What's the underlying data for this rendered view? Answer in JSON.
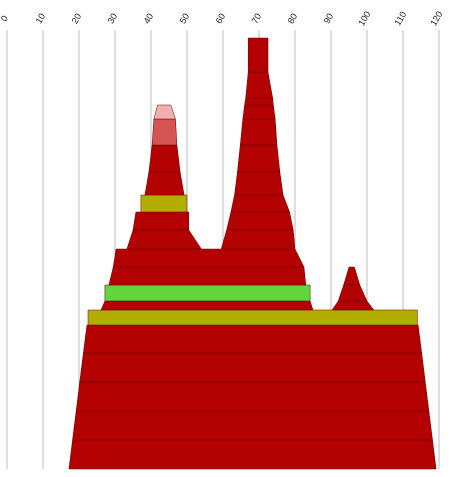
{
  "chart_data": {
    "type": "mountain",
    "xlim": [
      0,
      120
    ],
    "xticks": [
      0,
      10,
      20,
      30,
      40,
      50,
      60,
      70,
      80,
      90,
      100,
      110,
      120
    ],
    "grid": true,
    "rows": [
      [
        {
          "start": 17.2,
          "end": 119.2,
          "top_start": 18.2,
          "top_end": 118.2,
          "color": "#b30000"
        }
      ],
      [
        {
          "start": 18.2,
          "end": 118.2,
          "top_start": 19.2,
          "top_end": 117.2,
          "color": "#b30000"
        }
      ],
      [
        {
          "start": 19.2,
          "end": 117.2,
          "top_start": 20.2,
          "top_end": 116.2,
          "color": "#b30000"
        }
      ],
      [
        {
          "start": 20.2,
          "end": 116.2,
          "top_start": 21.2,
          "top_end": 115.2,
          "color": "#b30000"
        }
      ],
      [
        {
          "start": 21.2,
          "end": 115.2,
          "top_start": 22.2,
          "top_end": 114.2,
          "color": "#b30000"
        }
      ],
      [
        {
          "start": 22.5,
          "end": 114,
          "top_start": 22.5,
          "top_end": 114,
          "color": "#b3ad00"
        }
      ],
      [
        {
          "start": 26.1,
          "end": 85,
          "top_start": 27.2,
          "top_end": 84.2,
          "color": "#b30000"
        },
        {
          "start": 90.3,
          "end": 101.9,
          "top_start": 92,
          "top_end": 100,
          "color": "#b30000"
        }
      ],
      [
        {
          "start": 27.2,
          "end": 84.2,
          "top_start": 27.2,
          "top_end": 84.2,
          "color": "#5ed63c"
        },
        {
          "start": 92,
          "end": 100,
          "top_start": 93.5,
          "top_end": 98,
          "color": "#b30000"
        }
      ],
      [
        {
          "start": 28.3,
          "end": 83,
          "top_start": 29.5,
          "top_end": 82.5,
          "color": "#b30000"
        },
        {
          "start": 93.5,
          "end": 98,
          "top_start": 95,
          "top_end": 96.5,
          "color": "#b30000"
        }
      ],
      [
        {
          "start": 29.5,
          "end": 82.5,
          "top_start": 30.3,
          "top_end": 80,
          "color": "#b30000"
        }
      ],
      [
        {
          "start": 33.3,
          "end": 54,
          "top_start": 35,
          "top_end": 50.5,
          "color": "#b30000"
        },
        {
          "start": 59.5,
          "end": 80,
          "top_start": 61,
          "top_end": 79.5,
          "color": "#b30000"
        }
      ],
      [
        {
          "start": 35,
          "end": 50.5,
          "top_start": 35.8,
          "top_end": 50.5,
          "color": "#b30000"
        },
        {
          "start": 61,
          "end": 79.5,
          "top_start": 62.2,
          "top_end": 78.5,
          "color": "#b30000"
        }
      ],
      [
        {
          "start": 37.2,
          "end": 50,
          "top_start": 37.2,
          "top_end": 50,
          "color": "#b3ad00"
        },
        {
          "start": 62.2,
          "end": 78.5,
          "top_start": 63.2,
          "top_end": 76.7,
          "color": "#b30000"
        }
      ],
      [
        {
          "start": 38.3,
          "end": 49.2,
          "top_start": 39.4,
          "top_end": 48.1,
          "color": "#b30000"
        },
        {
          "start": 63.2,
          "end": 76.7,
          "top_start": 64,
          "top_end": 75.8,
          "color": "#b30000"
        }
      ],
      [
        {
          "start": 39.4,
          "end": 48.1,
          "top_start": 40.3,
          "top_end": 47.2,
          "color": "#b30000"
        },
        {
          "start": 64,
          "end": 75.8,
          "top_start": 64.8,
          "top_end": 75,
          "color": "#b30000"
        }
      ],
      [
        {
          "start": 40.3,
          "end": 47.2,
          "top_start": 40.8,
          "top_end": 46.8,
          "color": "#d45454"
        },
        {
          "start": 64.8,
          "end": 75,
          "top_start": 65.5,
          "top_end": 74.5,
          "color": "#b30000"
        }
      ],
      [
        {
          "start": 40.8,
          "end": 46.8,
          "top_start": 41.8,
          "top_end": 45.5,
          "color": "#f0b0b0"
        },
        {
          "start": 65.5,
          "end": 74.5,
          "top_start": 66,
          "top_end": 74,
          "color": "#b30000"
        }
      ],
      [
        {
          "start": 66,
          "end": 74,
          "top_start": 66.3,
          "top_end": 73.8,
          "color": "#b30000"
        }
      ],
      [
        {
          "start": 66.3,
          "end": 73.8,
          "top_start": 67,
          "top_end": 72.5,
          "color": "#b30000"
        }
      ],
      [
        {
          "start": 67,
          "end": 72.5,
          "top_start": 67,
          "top_end": 72.5,
          "color": "#b30000"
        }
      ]
    ]
  }
}
